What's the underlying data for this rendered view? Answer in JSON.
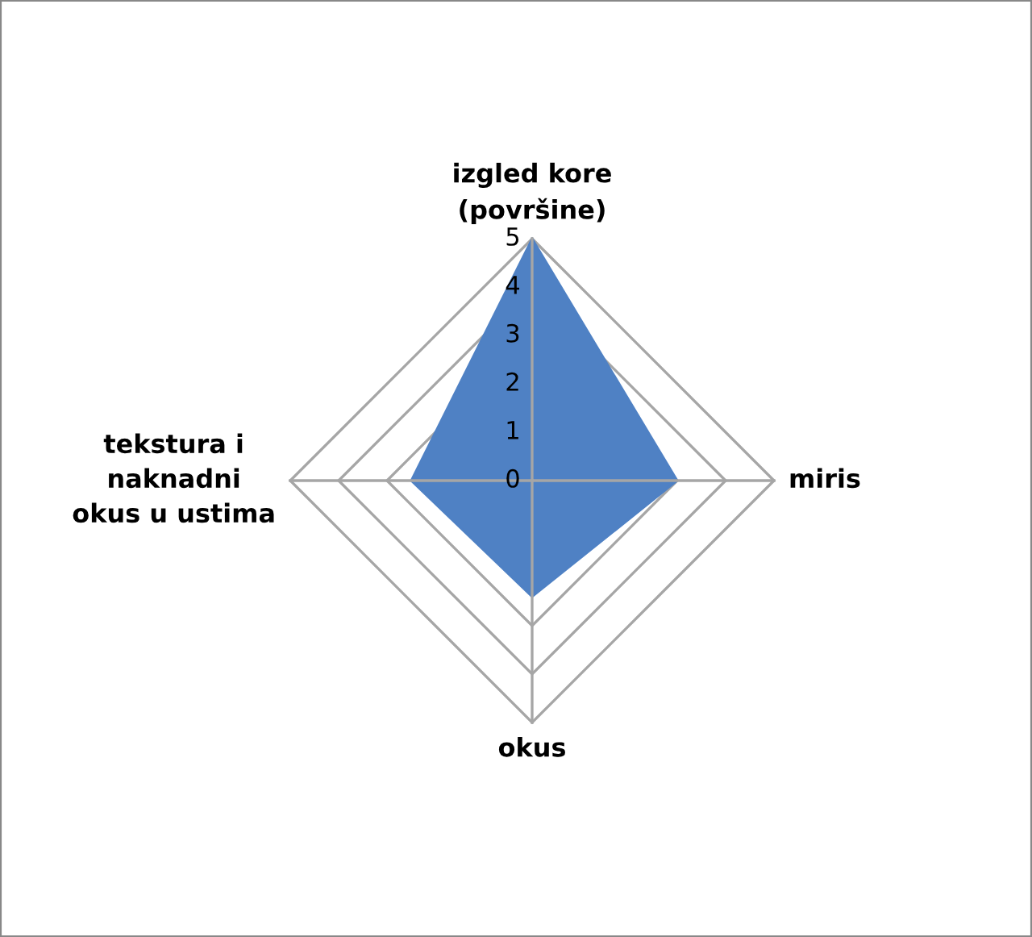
{
  "chart_data": {
    "type": "radar",
    "categories": [
      "izgled kore\n(površine)",
      "miris",
      "okus",
      "tekstura i\nnaknadni\nokus u ustima"
    ],
    "series": [
      {
        "color": "#4f81c4",
        "values": [
          5,
          3,
          2.4,
          2.5
        ]
      }
    ],
    "ylim": [
      0,
      5
    ],
    "yticks": [
      0,
      1,
      2,
      3,
      4,
      5
    ],
    "grid": true
  }
}
